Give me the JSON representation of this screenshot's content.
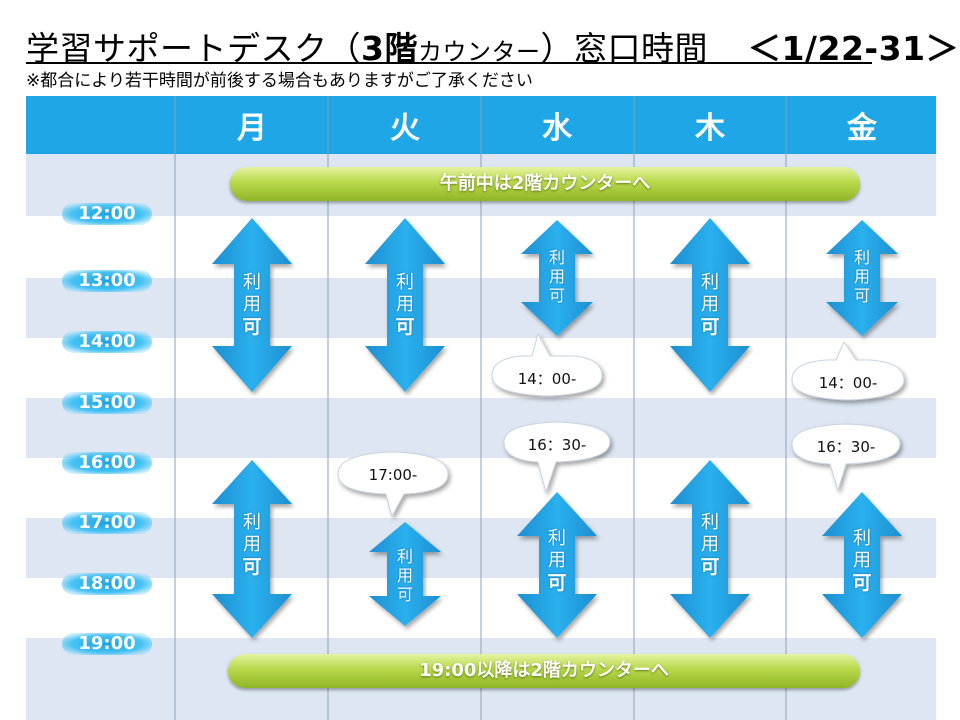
{
  "header": {
    "title_main": "学習サポートデスク",
    "title_paren_open": "（",
    "title_floor": "3階",
    "title_counter": "カウンター",
    "title_paren_close": "）",
    "title_hours": "窓口時間",
    "title_dates": "＜1/22-31＞",
    "notice": "※都合により若干時間が前後する場合もありますがご了承ください"
  },
  "days": [
    "月",
    "火",
    "水",
    "木",
    "金"
  ],
  "times": [
    "12:00",
    "13:00",
    "14:00",
    "15:00",
    "16:00",
    "17:00",
    "18:00",
    "19:00"
  ],
  "banners": {
    "morning": "午前中は2階カウンターへ",
    "evening": "19:00以降は2階カウンターへ"
  },
  "available": [
    "利",
    "用",
    "可"
  ],
  "callouts": {
    "wed_pm_end": "14：00-",
    "fri_pm_end": "14：00-",
    "tue_evening_start": "17:00-",
    "wed_evening_start": "16：30-",
    "fri_evening_start": "16：30-"
  },
  "colors": {
    "header_blue": "#1ea6e6",
    "row_light": "#dde6f2",
    "row_white": "#ffffff",
    "arrow_blue": "#21a1e3",
    "pill_green": "#a8cc3c"
  }
}
